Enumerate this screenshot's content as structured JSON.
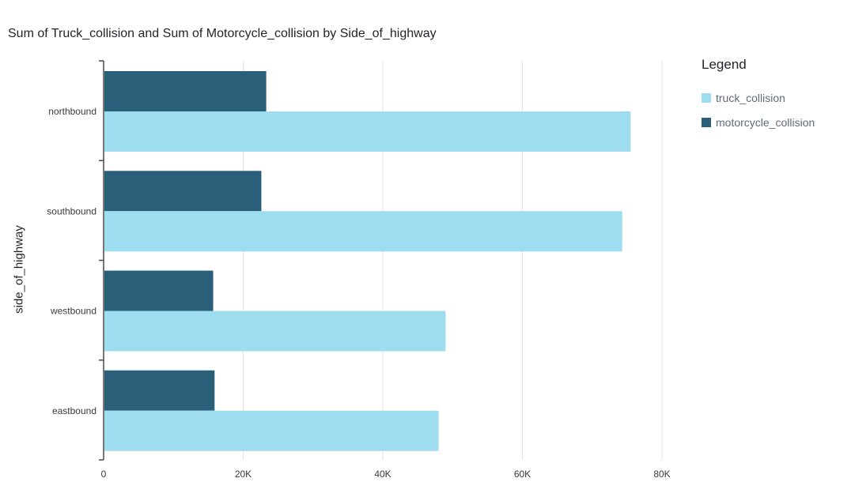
{
  "chart_data": {
    "type": "bar",
    "orientation": "horizontal",
    "title": "Sum of Truck_collision and Sum of Motorcycle_collision by Side_of_highway",
    "ylabel": "side_of_highway",
    "xlabel": "",
    "categories": [
      "northbound",
      "southbound",
      "westbound",
      "eastbound"
    ],
    "series": [
      {
        "name": "truck_collision",
        "color": "#9edcf0",
        "values": [
          75500,
          74300,
          49000,
          48000
        ]
      },
      {
        "name": "motorcycle_collision",
        "color": "#2a5f7a",
        "values": [
          23300,
          22600,
          15700,
          15900
        ]
      }
    ],
    "xlim": [
      0,
      80000
    ],
    "xticks": [
      {
        "value": 0,
        "label": "0"
      },
      {
        "value": 20000,
        "label": "20K"
      },
      {
        "value": 40000,
        "label": "40K"
      },
      {
        "value": 60000,
        "label": "60K"
      },
      {
        "value": 80000,
        "label": "80K"
      }
    ],
    "grid": true,
    "legend": {
      "title": "Legend",
      "placement": "right"
    }
  }
}
